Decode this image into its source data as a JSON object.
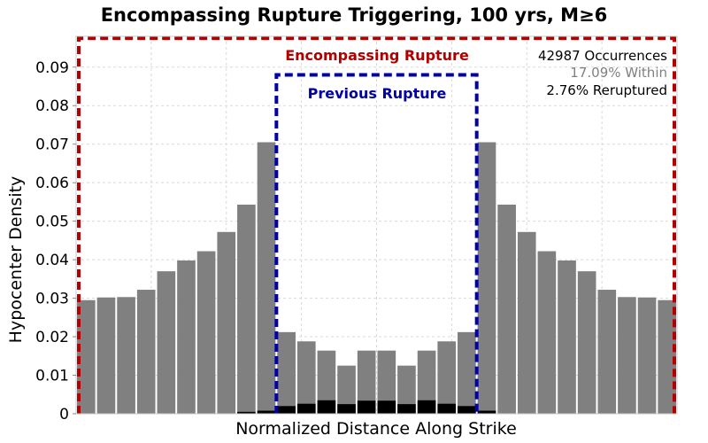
{
  "chart_data": {
    "type": "bar",
    "title": "Encompassing Rupture Triggering, 100 yrs, M≥6",
    "xlabel": "Normalized Distance Along Strike",
    "ylabel": "Hypocenter Density",
    "ylim": [
      0,
      0.098
    ],
    "yticks": [
      0,
      0.01,
      0.02,
      0.03,
      0.04,
      0.05,
      0.06,
      0.07,
      0.08,
      0.09
    ],
    "ytick_labels": [
      "0",
      "0.01",
      "0.02",
      "0.03",
      "0.04",
      "0.05",
      "0.06",
      "0.07",
      "0.08",
      "0.09"
    ],
    "grid": true,
    "bin_count": 30,
    "series": [
      {
        "color": "#808080",
        "values": [
          0.0295,
          0.0302,
          0.0303,
          0.0322,
          0.037,
          0.0398,
          0.0422,
          0.0472,
          0.0543,
          0.0705,
          0.0212,
          0.0188,
          0.0164,
          0.0125,
          0.0164,
          0.0164,
          0.0125,
          0.0164,
          0.0188,
          0.0212,
          0.0705,
          0.0543,
          0.0472,
          0.0422,
          0.0398,
          0.037,
          0.0322,
          0.0303,
          0.0302,
          0.0295
        ]
      },
      {
        "color": "#000000",
        "values": [
          0,
          0,
          0,
          0,
          0,
          0,
          0,
          0,
          0.0005,
          0.0008,
          0.002,
          0.0026,
          0.0035,
          0.0025,
          0.0034,
          0.0034,
          0.0025,
          0.0035,
          0.0026,
          0.002,
          0.0008,
          0,
          0,
          0,
          0,
          0,
          0,
          0,
          0,
          0
        ]
      }
    ],
    "annotations": {
      "encompassing_rupture": {
        "label": "Encompassing Rupture",
        "color": "#b20000",
        "bins": [
          0,
          30
        ],
        "y_top": 0.0975
      },
      "previous_rupture": {
        "label": "Previous Rupture",
        "color": "#0000a6",
        "bins": [
          10,
          20
        ],
        "y_top": 0.088
      },
      "stats": [
        {
          "text": "42987 Occurrences",
          "color": "#000000"
        },
        {
          "text": "17.09% Within",
          "color": "#808080"
        },
        {
          "text": "2.76% Reruptured",
          "color": "#000000"
        }
      ]
    }
  }
}
